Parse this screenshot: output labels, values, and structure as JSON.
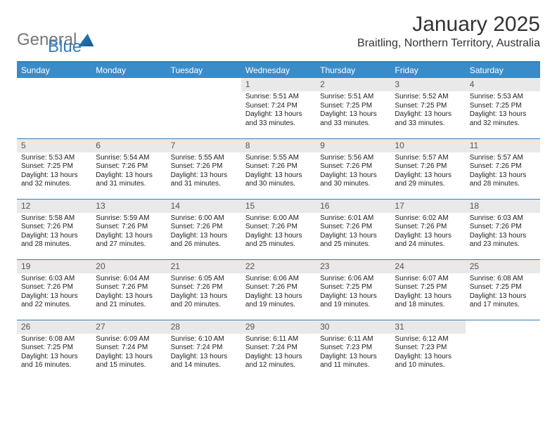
{
  "logo": {
    "word1": "General",
    "word2": "Blue"
  },
  "header": {
    "month_label": "January 2025",
    "location": "Braitling, Northern Territory, Australia"
  },
  "colors": {
    "accent": "#2f7fbf",
    "header_bg": "#3a8cc9",
    "daynum_bg": "#e9e9e9",
    "text": "#222222",
    "background": "#ffffff"
  },
  "weekdays": [
    "Sunday",
    "Monday",
    "Tuesday",
    "Wednesday",
    "Thursday",
    "Friday",
    "Saturday"
  ],
  "weeks": [
    [
      {
        "day": "",
        "sunrise": "",
        "sunset": "",
        "daylight": ""
      },
      {
        "day": "",
        "sunrise": "",
        "sunset": "",
        "daylight": ""
      },
      {
        "day": "",
        "sunrise": "",
        "sunset": "",
        "daylight": ""
      },
      {
        "day": "1",
        "sunrise": "Sunrise: 5:51 AM",
        "sunset": "Sunset: 7:24 PM",
        "daylight": "Daylight: 13 hours and 33 minutes."
      },
      {
        "day": "2",
        "sunrise": "Sunrise: 5:51 AM",
        "sunset": "Sunset: 7:25 PM",
        "daylight": "Daylight: 13 hours and 33 minutes."
      },
      {
        "day": "3",
        "sunrise": "Sunrise: 5:52 AM",
        "sunset": "Sunset: 7:25 PM",
        "daylight": "Daylight: 13 hours and 33 minutes."
      },
      {
        "day": "4",
        "sunrise": "Sunrise: 5:53 AM",
        "sunset": "Sunset: 7:25 PM",
        "daylight": "Daylight: 13 hours and 32 minutes."
      }
    ],
    [
      {
        "day": "5",
        "sunrise": "Sunrise: 5:53 AM",
        "sunset": "Sunset: 7:25 PM",
        "daylight": "Daylight: 13 hours and 32 minutes."
      },
      {
        "day": "6",
        "sunrise": "Sunrise: 5:54 AM",
        "sunset": "Sunset: 7:26 PM",
        "daylight": "Daylight: 13 hours and 31 minutes."
      },
      {
        "day": "7",
        "sunrise": "Sunrise: 5:55 AM",
        "sunset": "Sunset: 7:26 PM",
        "daylight": "Daylight: 13 hours and 31 minutes."
      },
      {
        "day": "8",
        "sunrise": "Sunrise: 5:55 AM",
        "sunset": "Sunset: 7:26 PM",
        "daylight": "Daylight: 13 hours and 30 minutes."
      },
      {
        "day": "9",
        "sunrise": "Sunrise: 5:56 AM",
        "sunset": "Sunset: 7:26 PM",
        "daylight": "Daylight: 13 hours and 30 minutes."
      },
      {
        "day": "10",
        "sunrise": "Sunrise: 5:57 AM",
        "sunset": "Sunset: 7:26 PM",
        "daylight": "Daylight: 13 hours and 29 minutes."
      },
      {
        "day": "11",
        "sunrise": "Sunrise: 5:57 AM",
        "sunset": "Sunset: 7:26 PM",
        "daylight": "Daylight: 13 hours and 28 minutes."
      }
    ],
    [
      {
        "day": "12",
        "sunrise": "Sunrise: 5:58 AM",
        "sunset": "Sunset: 7:26 PM",
        "daylight": "Daylight: 13 hours and 28 minutes."
      },
      {
        "day": "13",
        "sunrise": "Sunrise: 5:59 AM",
        "sunset": "Sunset: 7:26 PM",
        "daylight": "Daylight: 13 hours and 27 minutes."
      },
      {
        "day": "14",
        "sunrise": "Sunrise: 6:00 AM",
        "sunset": "Sunset: 7:26 PM",
        "daylight": "Daylight: 13 hours and 26 minutes."
      },
      {
        "day": "15",
        "sunrise": "Sunrise: 6:00 AM",
        "sunset": "Sunset: 7:26 PM",
        "daylight": "Daylight: 13 hours and 25 minutes."
      },
      {
        "day": "16",
        "sunrise": "Sunrise: 6:01 AM",
        "sunset": "Sunset: 7:26 PM",
        "daylight": "Daylight: 13 hours and 25 minutes."
      },
      {
        "day": "17",
        "sunrise": "Sunrise: 6:02 AM",
        "sunset": "Sunset: 7:26 PM",
        "daylight": "Daylight: 13 hours and 24 minutes."
      },
      {
        "day": "18",
        "sunrise": "Sunrise: 6:03 AM",
        "sunset": "Sunset: 7:26 PM",
        "daylight": "Daylight: 13 hours and 23 minutes."
      }
    ],
    [
      {
        "day": "19",
        "sunrise": "Sunrise: 6:03 AM",
        "sunset": "Sunset: 7:26 PM",
        "daylight": "Daylight: 13 hours and 22 minutes."
      },
      {
        "day": "20",
        "sunrise": "Sunrise: 6:04 AM",
        "sunset": "Sunset: 7:26 PM",
        "daylight": "Daylight: 13 hours and 21 minutes."
      },
      {
        "day": "21",
        "sunrise": "Sunrise: 6:05 AM",
        "sunset": "Sunset: 7:26 PM",
        "daylight": "Daylight: 13 hours and 20 minutes."
      },
      {
        "day": "22",
        "sunrise": "Sunrise: 6:06 AM",
        "sunset": "Sunset: 7:26 PM",
        "daylight": "Daylight: 13 hours and 19 minutes."
      },
      {
        "day": "23",
        "sunrise": "Sunrise: 6:06 AM",
        "sunset": "Sunset: 7:25 PM",
        "daylight": "Daylight: 13 hours and 19 minutes."
      },
      {
        "day": "24",
        "sunrise": "Sunrise: 6:07 AM",
        "sunset": "Sunset: 7:25 PM",
        "daylight": "Daylight: 13 hours and 18 minutes."
      },
      {
        "day": "25",
        "sunrise": "Sunrise: 6:08 AM",
        "sunset": "Sunset: 7:25 PM",
        "daylight": "Daylight: 13 hours and 17 minutes."
      }
    ],
    [
      {
        "day": "26",
        "sunrise": "Sunrise: 6:08 AM",
        "sunset": "Sunset: 7:25 PM",
        "daylight": "Daylight: 13 hours and 16 minutes."
      },
      {
        "day": "27",
        "sunrise": "Sunrise: 6:09 AM",
        "sunset": "Sunset: 7:24 PM",
        "daylight": "Daylight: 13 hours and 15 minutes."
      },
      {
        "day": "28",
        "sunrise": "Sunrise: 6:10 AM",
        "sunset": "Sunset: 7:24 PM",
        "daylight": "Daylight: 13 hours and 14 minutes."
      },
      {
        "day": "29",
        "sunrise": "Sunrise: 6:11 AM",
        "sunset": "Sunset: 7:24 PM",
        "daylight": "Daylight: 13 hours and 12 minutes."
      },
      {
        "day": "30",
        "sunrise": "Sunrise: 6:11 AM",
        "sunset": "Sunset: 7:23 PM",
        "daylight": "Daylight: 13 hours and 11 minutes."
      },
      {
        "day": "31",
        "sunrise": "Sunrise: 6:12 AM",
        "sunset": "Sunset: 7:23 PM",
        "daylight": "Daylight: 13 hours and 10 minutes."
      },
      {
        "day": "",
        "sunrise": "",
        "sunset": "",
        "daylight": ""
      }
    ]
  ]
}
